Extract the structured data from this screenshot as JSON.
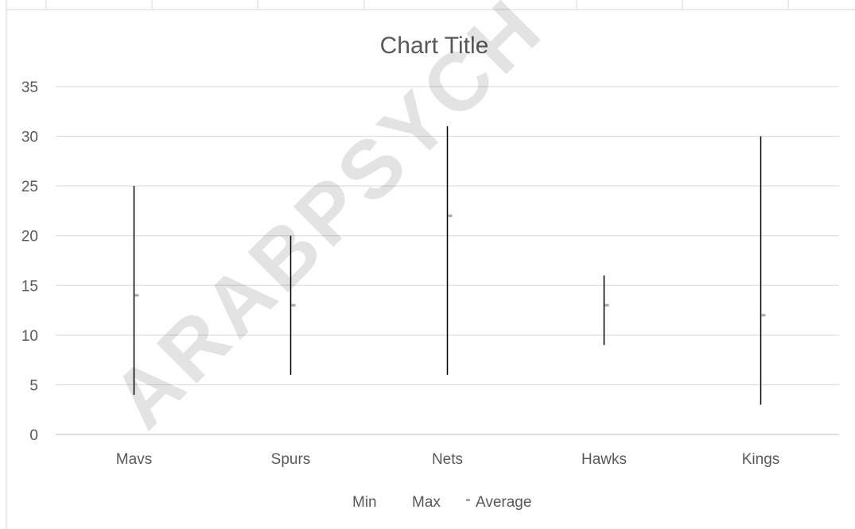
{
  "colors": {
    "hi_lo_line": "#000000",
    "average_marker": "#a6a6a6",
    "gridline": "#d9d9d9",
    "text": "#595959"
  },
  "watermark": "ARABPSYCH",
  "chart_data": {
    "type": "line",
    "subtype": "high-low",
    "title": "Chart Title",
    "xlabel": "",
    "ylabel": "",
    "categories": [
      "Mavs",
      "Spurs",
      "Nets",
      "Hawks",
      "Kings"
    ],
    "series": [
      {
        "name": "Min",
        "values": [
          4,
          6,
          6,
          9,
          3
        ]
      },
      {
        "name": "Max",
        "values": [
          25,
          20,
          31,
          16,
          30
        ]
      },
      {
        "name": "Average",
        "values": [
          14,
          13,
          22,
          13,
          12
        ]
      }
    ],
    "ylim": [
      0,
      35
    ],
    "yticks": [
      0,
      5,
      10,
      15,
      20,
      25,
      30,
      35
    ],
    "grid": true,
    "legend_position": "bottom",
    "legend": [
      "Min",
      "Max",
      "Average"
    ]
  }
}
